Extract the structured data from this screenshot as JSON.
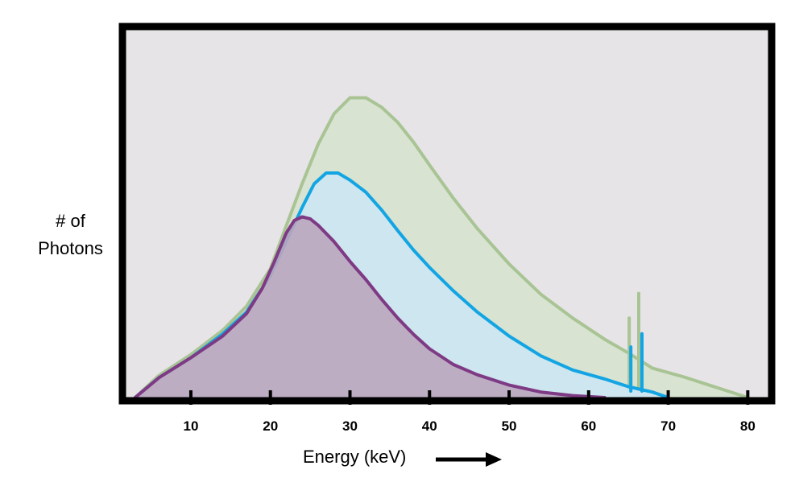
{
  "chart_data": {
    "type": "area",
    "xlabel": "Energy (keV)",
    "ylabel_lines": [
      "# of",
      "Photons"
    ],
    "xlim": [
      1.4,
      83
    ],
    "ylim": [
      0,
      1
    ],
    "x_ticks": [
      10,
      20,
      30,
      40,
      50,
      60,
      70,
      80
    ],
    "grid": false,
    "legend": "none",
    "axis_arrow": "right",
    "colors": {
      "plot_background": "#e6e4e6",
      "frame": "#000000",
      "axis_arrow": "#000000"
    },
    "series": [
      {
        "line_color": "#a9c494",
        "fill_color": "#d6e2cf",
        "x": [
          3,
          6,
          10,
          14,
          17,
          20,
          22,
          24,
          26,
          28,
          30,
          32,
          34,
          36,
          38,
          40,
          43,
          46,
          50,
          54,
          58,
          62,
          65,
          68,
          72,
          76,
          80
        ],
        "y": [
          0,
          0.069,
          0.134,
          0.21,
          0.285,
          0.402,
          0.537,
          0.668,
          0.791,
          0.886,
          0.936,
          0.936,
          0.906,
          0.859,
          0.797,
          0.726,
          0.622,
          0.528,
          0.417,
          0.322,
          0.248,
          0.182,
          0.139,
          0.092,
          0.064,
          0.032,
          0
        ],
        "spikes": [
          {
            "x": 65.1,
            "y": 0.248
          },
          {
            "x": 66.3,
            "y": 0.325
          }
        ]
      },
      {
        "line_color": "#13a5e3",
        "fill_color": "#cde6f2",
        "x": [
          3,
          6,
          10,
          14,
          17,
          20,
          22,
          24,
          25.5,
          27,
          28.5,
          30,
          32,
          34,
          36,
          38,
          40,
          43,
          46,
          50,
          54,
          58,
          62,
          65,
          68,
          70
        ],
        "y": [
          0,
          0.062,
          0.124,
          0.199,
          0.267,
          0.38,
          0.487,
          0.594,
          0.667,
          0.701,
          0.701,
          0.679,
          0.641,
          0.585,
          0.521,
          0.46,
          0.406,
          0.333,
          0.267,
          0.192,
          0.13,
          0.086,
          0.058,
          0.034,
          0.017,
          0
        ],
        "spikes": [
          {
            "x": 65.3,
            "y": 0.158
          },
          {
            "x": 66.7,
            "y": 0.199
          }
        ]
      },
      {
        "line_color": "#7e3a84",
        "fill_color": "#bba6be",
        "x": [
          3,
          6,
          10,
          14,
          17,
          19,
          20.5,
          22,
          23,
          24,
          25,
          26,
          28,
          30,
          32,
          34,
          36,
          38,
          40,
          43,
          46,
          50,
          54,
          58,
          62
        ],
        "y": [
          0,
          0.062,
          0.124,
          0.192,
          0.262,
          0.342,
          0.425,
          0.514,
          0.553,
          0.564,
          0.558,
          0.538,
          0.487,
          0.425,
          0.368,
          0.306,
          0.248,
          0.197,
          0.152,
          0.103,
          0.071,
          0.039,
          0.017,
          0.006,
          0
        ]
      }
    ]
  }
}
